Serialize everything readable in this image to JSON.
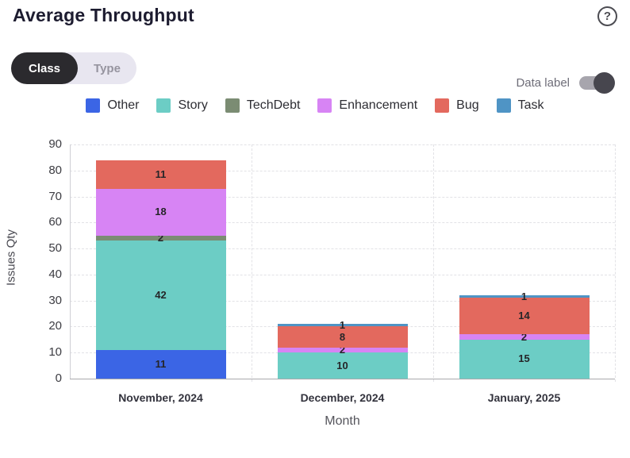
{
  "header": {
    "title": "Average Throughput",
    "help_icon": "?"
  },
  "controls": {
    "view_toggle": {
      "options": [
        "Class",
        "Type"
      ],
      "selected": "Class"
    },
    "data_label": {
      "label": "Data label",
      "state": "on"
    }
  },
  "colors": {
    "other": "#3b65e5",
    "story": "#6ccdc5",
    "techdebt": "#7b8c73",
    "enhancement": "#d784f4",
    "bug": "#e3695e",
    "task": "#4f94c5",
    "toggle_selected_bg": "#2b2a2e",
    "toggle_bg": "#e8e6f0"
  },
  "legend": [
    {
      "label": "Other",
      "color": "#3b65e5"
    },
    {
      "label": "Story",
      "color": "#6ccdc5"
    },
    {
      "label": "TechDebt",
      "color": "#7b8c73"
    },
    {
      "label": "Enhancement",
      "color": "#d784f4"
    },
    {
      "label": "Bug",
      "color": "#e3695e"
    },
    {
      "label": "Task",
      "color": "#4f94c5"
    }
  ],
  "chart_data": {
    "type": "bar",
    "stacked": true,
    "title": "Average Throughput",
    "categories": [
      "November, 2024",
      "December, 2024",
      "January, 2025"
    ],
    "series": [
      {
        "name": "Other",
        "color": "#3b65e5",
        "values": [
          11,
          0,
          0
        ]
      },
      {
        "name": "Story",
        "color": "#6ccdc5",
        "values": [
          42,
          10,
          15
        ]
      },
      {
        "name": "TechDebt",
        "color": "#7b8c73",
        "values": [
          2,
          0,
          0
        ]
      },
      {
        "name": "Enhancement",
        "color": "#d784f4",
        "values": [
          18,
          2,
          2
        ]
      },
      {
        "name": "Bug",
        "color": "#e3695e",
        "values": [
          11,
          8,
          14
        ]
      },
      {
        "name": "Task",
        "color": "#4f94c5",
        "values": [
          0,
          1,
          1
        ]
      }
    ],
    "totals": [
      84,
      21,
      32
    ],
    "xlabel": "Month",
    "ylabel": "Issues Qty",
    "ylim": [
      0,
      90
    ],
    "ytick_step": 10,
    "grid": true,
    "grid_style": "dashed",
    "legend_position": "top",
    "data_labels": true
  }
}
